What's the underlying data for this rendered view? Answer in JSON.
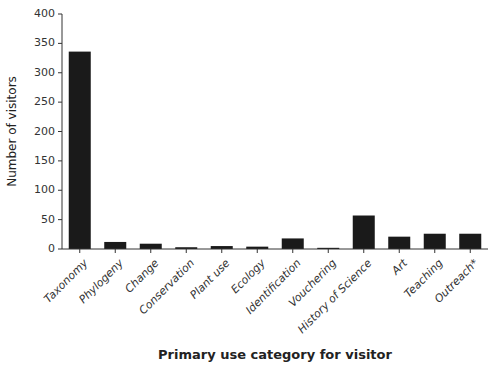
{
  "chart_data": {
    "type": "bar",
    "categories": [
      "Taxonomy",
      "Phylogeny",
      "Change",
      "Conservation",
      "Plant use",
      "Ecology",
      "Identification",
      "Vouchering",
      "History of Science",
      "Art",
      "Teaching",
      "Outreach*"
    ],
    "values": [
      336,
      12,
      9,
      3,
      5,
      4,
      18,
      2,
      57,
      21,
      26,
      26
    ],
    "color": "#1a1a1a",
    "ylabel": "Number of visitors",
    "xlabel": "Primary use category for visitor",
    "ylim": [
      0,
      400
    ],
    "yticks": [
      0,
      50,
      100,
      150,
      200,
      250,
      300,
      350,
      400
    ],
    "grid": false
  }
}
